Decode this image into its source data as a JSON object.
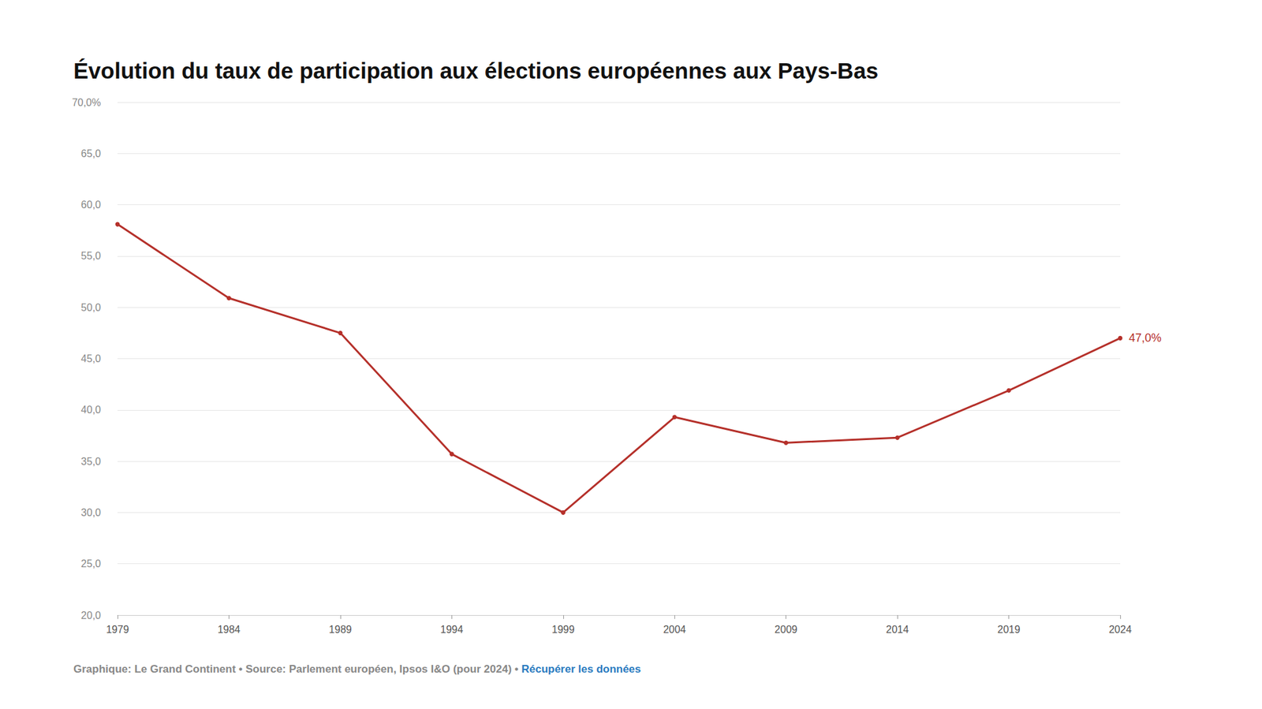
{
  "chart_data": {
    "type": "line",
    "title": "Évolution du taux de participation aux élections européennes aux Pays-Bas",
    "source": "Graphique: Le Grand Continent • Source: Parlement européen, Ipsos I&O (pour 2024) • ",
    "source_link": "Récupérer les données",
    "categories": [
      "1979",
      "1984",
      "1989",
      "1994",
      "1999",
      "2004",
      "2009",
      "2014",
      "2019",
      "2024"
    ],
    "values": [
      58.1,
      50.9,
      47.5,
      35.7,
      30.0,
      39.3,
      36.8,
      37.3,
      41.9,
      47.0
    ],
    "value_labels": [
      null,
      null,
      null,
      null,
      null,
      null,
      null,
      null,
      null,
      "47,0%"
    ],
    "color": "#b5302a",
    "marker": "circle",
    "ylim": [
      20,
      70
    ],
    "yticks": [
      {
        "value": 20,
        "label": "20,0"
      },
      {
        "value": 25,
        "label": "25,0"
      },
      {
        "value": 30,
        "label": "30,0"
      },
      {
        "value": 35,
        "label": "35,0"
      },
      {
        "value": 40,
        "label": "40,0"
      },
      {
        "value": 45,
        "label": "45,0"
      },
      {
        "value": 50,
        "label": "50,0"
      },
      {
        "value": 55,
        "label": "55,0"
      },
      {
        "value": 60,
        "label": "60,0"
      },
      {
        "value": 65,
        "label": "65,0"
      },
      {
        "value": 70,
        "label": "70,0%"
      }
    ],
    "grid": true
  }
}
